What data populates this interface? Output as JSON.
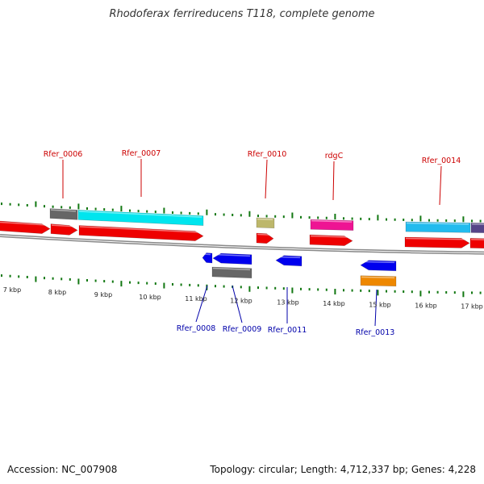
{
  "title": "Rhodoferax ferrireducens T118, complete genome",
  "footer": {
    "accession": "Accession: NC_007908",
    "summary": "Topology: circular; Length: 4,712,337 bp; Genes: 4,228"
  },
  "colors": {
    "label_top": "#cc0000",
    "label_bottom": "#0000aa",
    "tick": "#117711",
    "backbone": "#888888",
    "red": "#ee0000",
    "gray": "#666666",
    "cyan": "#00e5ee",
    "khaki": "#bdb76b",
    "magenta": "#ee1493",
    "blue": "#0000ee",
    "orange": "#ee8800",
    "skyblue": "#22bbee",
    "slate": "#554488"
  },
  "scale_labels": [
    "7 kbp",
    "8 kbp",
    "9 kbp",
    "10 kbp",
    "11 kbp",
    "12 kbp",
    "13 kbp",
    "14 kbp",
    "15 kbp",
    "16 kbp",
    "17 kbp"
  ],
  "labels_top": [
    "Rfer_0006",
    "Rfer_0007",
    "Rfer_0010",
    "rdgC",
    "Rfer_0014"
  ],
  "labels_bottom": [
    "Rfer_0008",
    "Rfer_0009",
    "Rfer_0011",
    "Rfer_0013"
  ]
}
